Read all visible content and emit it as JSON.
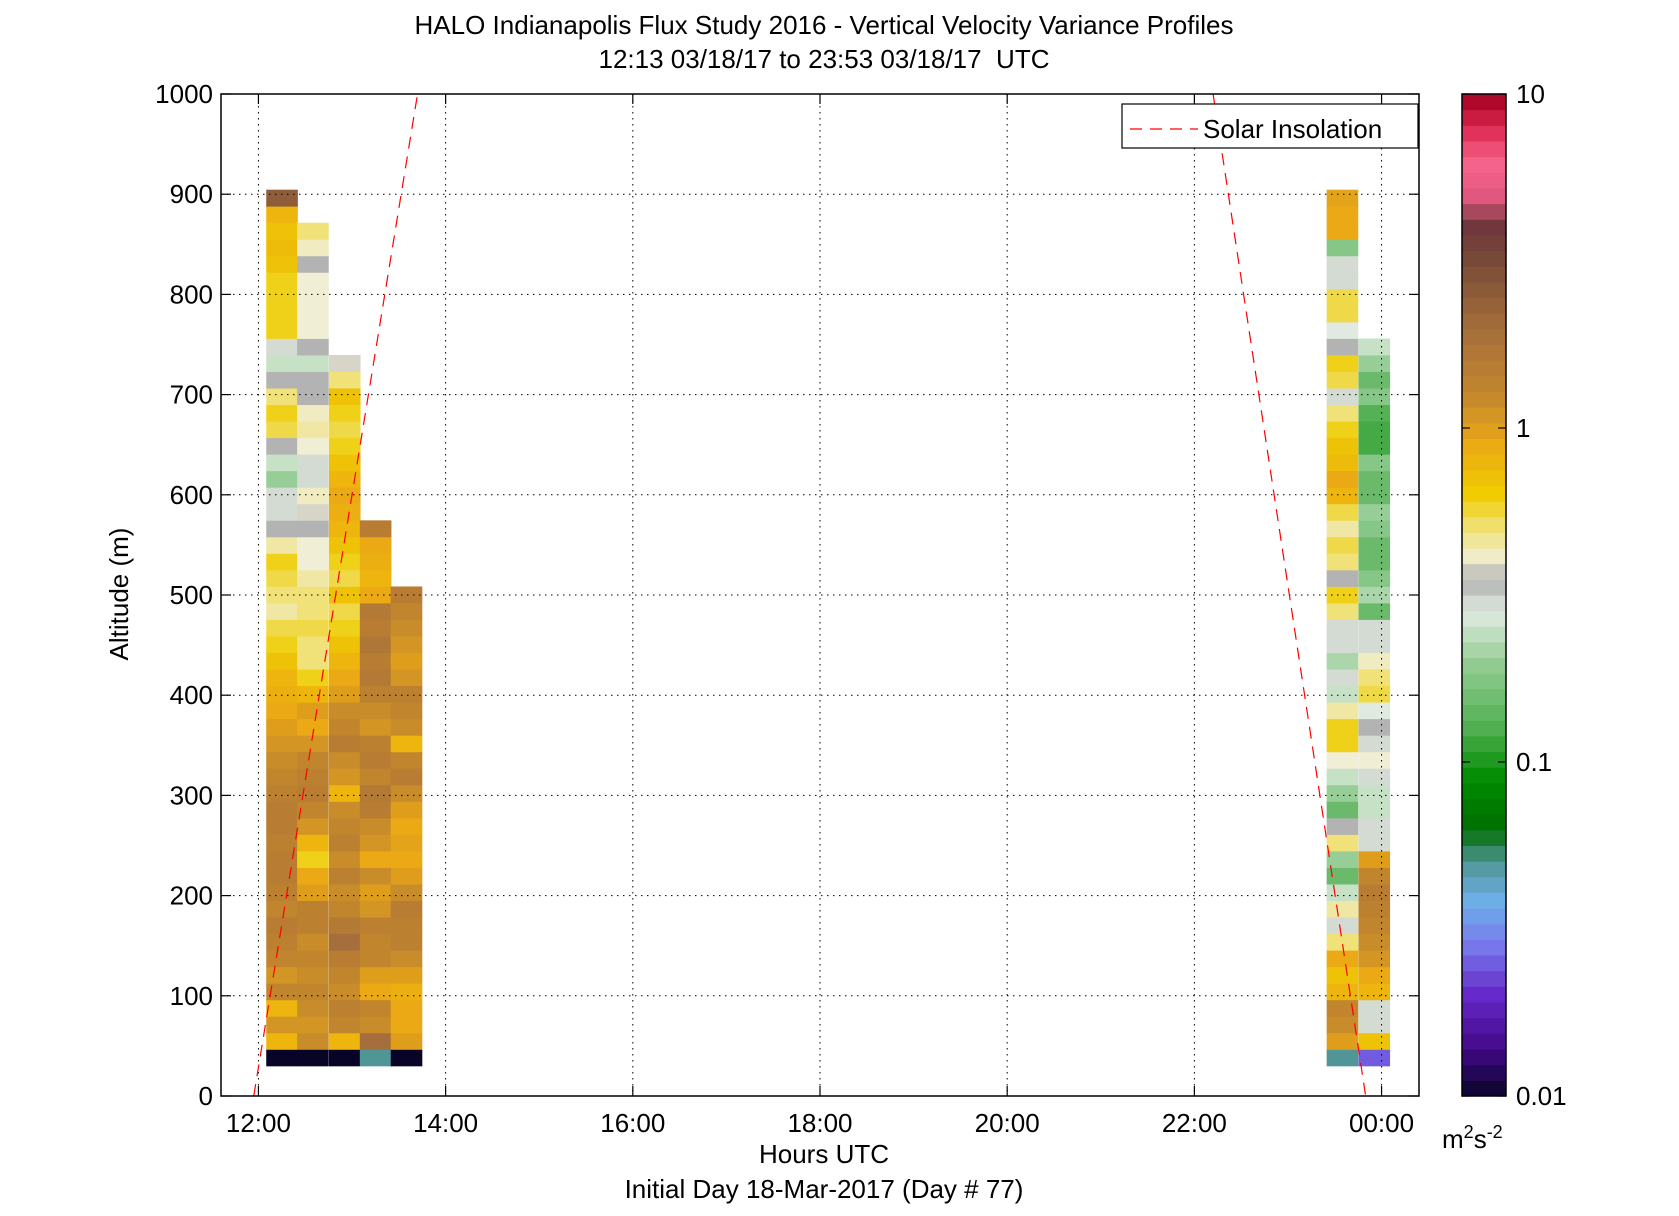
{
  "chart_data": {
    "type": "heatmap",
    "title": "HALO Indianapolis Flux Study 2016 - Vertical Velocity Variance Profiles",
    "subtitle": "12:13 03/18/17 to 23:53 03/18/17  UTC",
    "xlabel": "Hours UTC",
    "xlabel2": "Initial Day 18-Mar-2017 (Day # 77)",
    "ylabel": "Altitude (m)",
    "colorbar_unit": "m2s-2",
    "xlim": [
      11.6,
      24.4
    ],
    "ylim": [
      0,
      1000
    ],
    "x_ticks": [
      12,
      14,
      16,
      18,
      20,
      22,
      24
    ],
    "x_tick_labels": [
      "12:00",
      "14:00",
      "16:00",
      "18:00",
      "20:00",
      "22:00",
      "00:00"
    ],
    "y_ticks": [
      0,
      100,
      200,
      300,
      400,
      500,
      600,
      700,
      800,
      900,
      1000
    ],
    "y_tick_labels": [
      "0",
      "100",
      "200",
      "300",
      "400",
      "500",
      "600",
      "700",
      "800",
      "900",
      "1000"
    ],
    "grid": true,
    "legend": {
      "placement": "top-right",
      "entries": [
        "Solar Insolation"
      ]
    },
    "colorbar": {
      "scale": "log",
      "range": [
        0.01,
        10
      ],
      "tick_values": [
        0.01,
        0.1,
        1,
        10
      ],
      "tick_labels": [
        "0.01",
        "0.1",
        "1",
        "10"
      ]
    },
    "gate_bottom_m": 30,
    "gate_height_m": 16.5,
    "solar_insolation": [
      {
        "x": [
          11.95,
          13.7
        ],
        "y": [
          0,
          1000
        ],
        "color": "#ff0000",
        "dash": "long-dash"
      },
      {
        "x": [
          22.2,
          23.83
        ],
        "y": [
          1000,
          0
        ],
        "color": "#ff0000",
        "dash": "long-dash"
      }
    ],
    "profiles": [
      {
        "time": 12.25,
        "values": [
          0.01,
          0.8,
          1.1,
          0.8,
          1.3,
          1.1,
          1.3,
          1.4,
          1.5,
          1.3,
          1.4,
          1.5,
          1.5,
          1.4,
          1.5,
          1.5,
          1.4,
          1.3,
          1.2,
          1.1,
          1.0,
          0.9,
          0.85,
          0.8,
          0.7,
          0.6,
          0.55,
          0.45,
          0.5,
          0.55,
          0.6,
          0.45,
          0.35,
          0.3,
          0.3,
          0.2,
          0.25,
          0.35,
          0.55,
          0.6,
          0.5,
          0.35,
          0.25,
          0.3,
          0.6,
          0.6,
          0.6,
          0.6,
          0.7,
          0.75,
          0.7,
          0.8,
          2.5
        ]
      },
      {
        "time": 12.58,
        "values": [
          0.01,
          1.2,
          1.1,
          1.2,
          1.3,
          1.2,
          1.3,
          1.2,
          1.4,
          1.4,
          1.0,
          0.9,
          0.6,
          0.8,
          1.1,
          1.3,
          1.5,
          1.4,
          1.3,
          1.1,
          0.9,
          1.0,
          0.8,
          0.6,
          0.5,
          0.5,
          0.55,
          0.5,
          0.5,
          0.45,
          0.4,
          0.4,
          0.35,
          0.38,
          0.42,
          0.3,
          0.3,
          0.4,
          0.45,
          0.42,
          0.35,
          0.35,
          0.25,
          0.35,
          0.4,
          0.4,
          0.4,
          0.4,
          0.35,
          0.42,
          0.5
        ]
      },
      {
        "time": 12.92,
        "values": [
          0.01,
          0.8,
          1.3,
          1.4,
          1.2,
          1.3,
          1.5,
          2.0,
          1.6,
          1.3,
          1.2,
          1.4,
          1.2,
          1.4,
          1.3,
          1.2,
          0.8,
          1.1,
          1.2,
          1.5,
          1.3,
          1.2,
          1.0,
          0.9,
          0.8,
          0.7,
          0.6,
          0.55,
          0.7,
          0.55,
          0.6,
          0.7,
          0.8,
          0.85,
          0.9,
          0.8,
          0.7,
          0.6,
          0.55,
          0.6,
          0.7,
          0.5,
          0.38
        ]
      },
      {
        "time": 13.25,
        "values": [
          0.05,
          2.0,
          1.2,
          1.3,
          0.9,
          1.0,
          1.3,
          1.3,
          1.4,
          1.1,
          1.0,
          1.2,
          0.9,
          1.1,
          1.2,
          1.5,
          1.6,
          1.3,
          1.5,
          1.4,
          1.1,
          1.2,
          1.4,
          1.6,
          1.5,
          1.7,
          1.5,
          1.6,
          0.9,
          0.8,
          0.85,
          0.9,
          1.5
        ]
      },
      {
        "time": 13.58,
        "values": [
          0.01,
          1.0,
          0.9,
          0.9,
          0.85,
          1.0,
          1.2,
          1.4,
          1.4,
          1.5,
          1.2,
          1.0,
          0.9,
          0.95,
          0.9,
          1.0,
          1.2,
          1.5,
          1.3,
          0.8,
          1.2,
          1.3,
          1.4,
          1.1,
          1.0,
          1.1,
          1.2,
          1.3,
          1.5
        ]
      },
      {
        "time": 23.58,
        "values": [
          0.05,
          1.0,
          1.2,
          1.3,
          0.8,
          0.7,
          0.9,
          0.5,
          0.3,
          0.45,
          0.25,
          0.15,
          0.2,
          0.5,
          0.35,
          0.15,
          0.2,
          0.25,
          0.4,
          0.6,
          0.6,
          0.45,
          0.25,
          0.3,
          0.22,
          0.3,
          0.3,
          0.5,
          0.6,
          0.35,
          0.5,
          0.55,
          0.45,
          0.55,
          0.8,
          0.9,
          0.75,
          0.7,
          0.6,
          0.5,
          0.3,
          0.55,
          0.6,
          0.35,
          0.28,
          0.55,
          0.55,
          0.3,
          0.3,
          0.18,
          0.9,
          0.9,
          0.95
        ]
      },
      {
        "time": 23.92,
        "values": [
          0.025,
          0.7,
          0.3,
          0.3,
          0.8,
          0.9,
          1.1,
          1.2,
          1.3,
          1.4,
          1.5,
          1.3,
          1.0,
          0.3,
          0.3,
          0.25,
          0.25,
          0.3,
          0.4,
          0.3,
          0.35,
          0.28,
          0.55,
          0.5,
          0.42,
          0.3,
          0.3,
          0.15,
          0.22,
          0.18,
          0.15,
          0.15,
          0.18,
          0.2,
          0.15,
          0.15,
          0.18,
          0.12,
          0.12,
          0.13,
          0.18,
          0.15,
          0.2,
          0.25
        ]
      }
    ]
  }
}
